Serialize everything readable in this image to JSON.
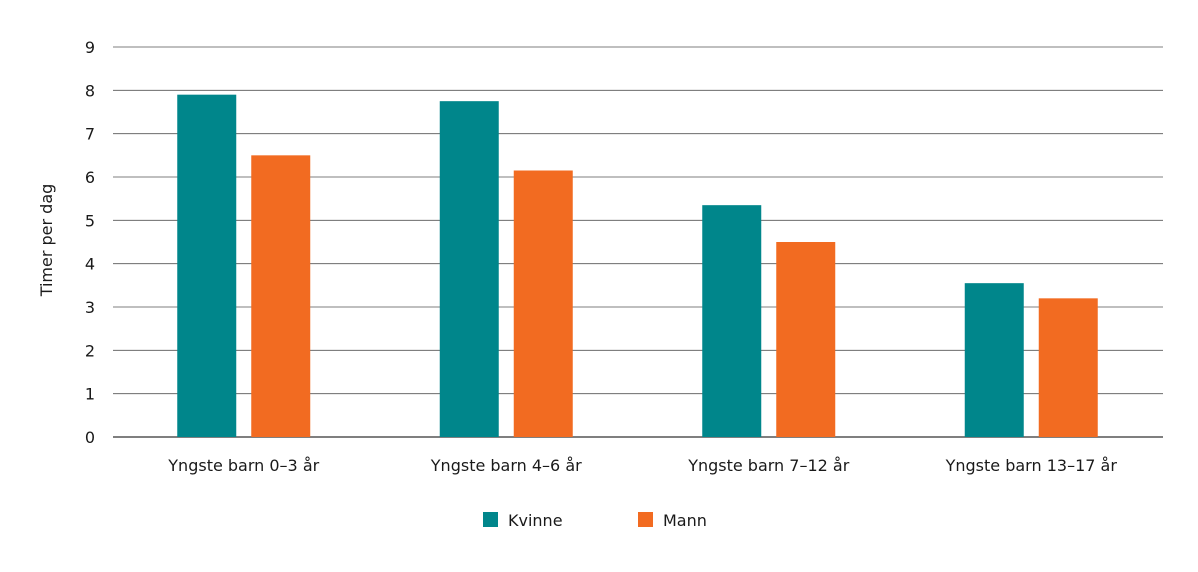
{
  "chart_data": {
    "type": "bar",
    "title": "",
    "xlabel": "",
    "ylabel": "Timer per dag",
    "ylim": [
      0,
      9
    ],
    "yticks": [
      0,
      1,
      2,
      3,
      4,
      5,
      6,
      7,
      8,
      9
    ],
    "grid": true,
    "legend_position": "bottom-center",
    "categories": [
      "Yngste barn 0–3 år",
      "Yngste barn 4–6 år",
      "Yngste barn 7–12 år",
      "Yngste barn 13–17 år"
    ],
    "series": [
      {
        "name": "Kvinne",
        "color": "#00868B",
        "values": [
          7.9,
          7.75,
          5.35,
          3.55
        ]
      },
      {
        "name": "Mann",
        "color": "#F26B21",
        "values": [
          6.5,
          6.15,
          4.5,
          3.2
        ]
      }
    ]
  }
}
